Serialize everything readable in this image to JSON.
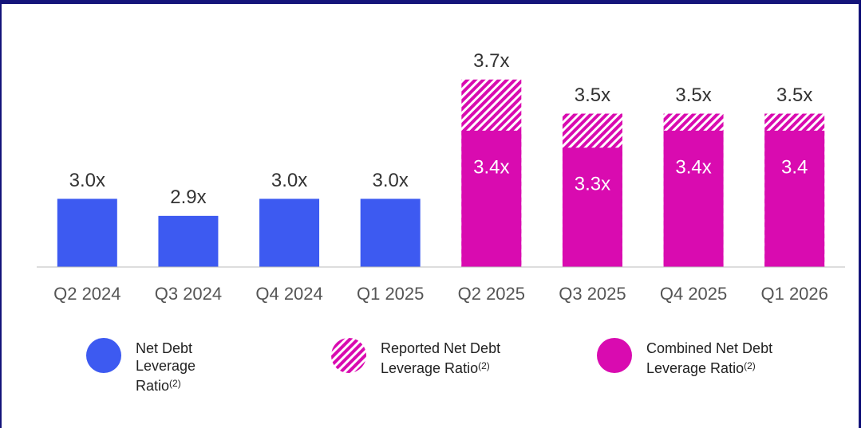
{
  "chart_data": {
    "type": "bar",
    "categories": [
      "Q2 2024",
      "Q3 2024",
      "Q4 2024",
      "Q1 2025",
      "Q2 2025",
      "Q3 2025",
      "Q4 2025",
      "Q1 2026"
    ],
    "ylim": [
      2.6,
      3.9
    ],
    "series": [
      {
        "name": "Net Debt Leverage Ratio",
        "name_note": "(2)",
        "color": "#3d5af1",
        "pattern": "solid",
        "values": [
          3.0,
          2.9,
          3.0,
          3.0,
          null,
          null,
          null,
          null
        ],
        "value_labels": [
          "3.0x",
          "2.9x",
          "3.0x",
          "3.0x",
          null,
          null,
          null,
          null
        ]
      },
      {
        "name": "Reported Net Debt Leverage Ratio",
        "name_note": "(2)",
        "color": "#d90bb0",
        "pattern": "hatch",
        "values": [
          null,
          null,
          null,
          null,
          3.7,
          3.5,
          3.5,
          3.5
        ],
        "value_labels": [
          null,
          null,
          null,
          null,
          "3.7x",
          "3.5x",
          "3.5x",
          "3.5x"
        ]
      },
      {
        "name": "Combined Net Debt Leverage Ratio",
        "name_note": "(2)",
        "color": "#d90bb0",
        "pattern": "solid",
        "values": [
          null,
          null,
          null,
          null,
          3.4,
          3.3,
          3.4,
          3.4
        ],
        "value_labels": [
          null,
          null,
          null,
          null,
          "3.4x",
          "3.3x",
          "3.4x",
          "3.4"
        ]
      }
    ]
  }
}
